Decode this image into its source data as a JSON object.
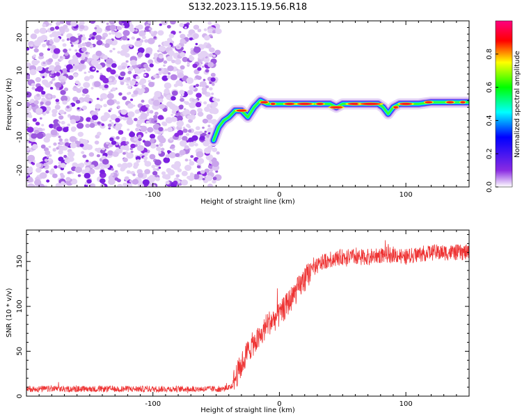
{
  "figure_title": "S132.2023.115.19.56.R18",
  "chart_data": [
    {
      "type": "heatmap",
      "title": "S132.2023.115.19.56.R18",
      "xlabel": "Height of straight line (km)",
      "ylabel": "Frequency (Hz)",
      "xlim": [
        -200,
        150
      ],
      "ylim": [
        -25,
        25
      ],
      "x_ticks": [
        -100,
        0,
        100
      ],
      "y_ticks": [
        -20,
        -10,
        0,
        10,
        20
      ],
      "grid": false,
      "noise_region_x": [
        -200,
        -52
      ],
      "signal_trace": {
        "x": [
          -52,
          -48,
          -44,
          -40,
          -35,
          -30,
          -25,
          -20,
          -15,
          -10,
          0,
          10,
          20,
          30,
          40,
          45,
          50,
          60,
          70,
          78,
          82,
          86,
          90,
          95,
          100,
          110,
          120,
          130,
          140,
          150
        ],
        "y": [
          -11,
          -7,
          -5,
          -4,
          -2,
          -2,
          -4,
          -1,
          1,
          0,
          0,
          0,
          0,
          0,
          0,
          -1,
          0,
          0,
          0,
          0,
          -1,
          -3,
          -1,
          0,
          0,
          0,
          0.5,
          0.5,
          0.5,
          0.5
        ]
      },
      "colorbar": {
        "label": "Normalized spectral amplitude",
        "range": [
          0,
          1
        ],
        "ticks": [
          0.0,
          0.2,
          0.4,
          0.6,
          0.8
        ],
        "tick_labels": [
          "0.0",
          "0.2",
          "0.4",
          "0.6",
          "0.8"
        ],
        "colors": [
          "#ffffff",
          "#8a2be2",
          "#0000ff",
          "#00ffff",
          "#00ff00",
          "#ffff00",
          "#ff0000",
          "#ff00ff"
        ]
      }
    },
    {
      "type": "line",
      "xlabel": "Height of straight line (km)",
      "ylabel": "SNR (10 * v/v)",
      "xlim": [
        -200,
        150
      ],
      "ylim": [
        0,
        185
      ],
      "x_ticks": [
        -100,
        0,
        100
      ],
      "y_ticks": [
        0,
        50,
        100,
        150
      ],
      "grid": false,
      "color": "#ee3333",
      "series": [
        {
          "x": [
            -200,
            -150,
            -100,
            -60,
            -45,
            -38,
            -35,
            -30,
            -25,
            -20,
            -15,
            -10,
            -5,
            0,
            5,
            10,
            15,
            20,
            25,
            30,
            35,
            40,
            50,
            60,
            70,
            80,
            90,
            100,
            110,
            120,
            130,
            140,
            150
          ],
          "values": [
            8,
            8,
            8,
            8,
            8,
            10,
            20,
            35,
            50,
            60,
            65,
            80,
            85,
            90,
            100,
            110,
            120,
            130,
            140,
            145,
            150,
            152,
            155,
            155,
            155,
            157,
            158,
            155,
            158,
            160,
            160,
            160,
            160
          ]
        }
      ]
    }
  ]
}
